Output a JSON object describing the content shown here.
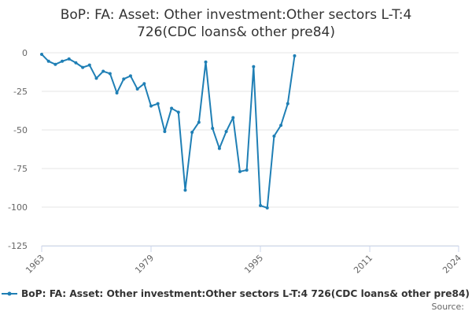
{
  "chart_data": {
    "type": "line",
    "title_lines": [
      "BoP: FA: Asset: Other investment:Other sectors L-T:4",
      "726(CDC loans& other pre84)"
    ],
    "xlabel": "",
    "ylabel": "",
    "xlim": [
      1963,
      2024
    ],
    "ylim": [
      -125,
      0
    ],
    "x_ticks": [
      1963,
      1979,
      1995,
      2011,
      2024
    ],
    "x_tick_labels": [
      "1963",
      "1979",
      "1995",
      "2011",
      "2024"
    ],
    "y_ticks": [
      0,
      -25,
      -50,
      -75,
      -100,
      -125
    ],
    "y_tick_labels": [
      "0",
      "-25",
      "-50",
      "-75",
      "-100",
      "-125"
    ],
    "grid": "horizontal",
    "legend_position": "bottom",
    "source_label": "Source:",
    "series": [
      {
        "name": "BoP: FA: Asset: Other investment:Other sectors L-T:4 726(CDC loans& other pre84)",
        "color": "#1f7fb5",
        "x": [
          1963,
          1964,
          1965,
          1966,
          1967,
          1968,
          1969,
          1970,
          1971,
          1972,
          1973,
          1974,
          1975,
          1976,
          1977,
          1978,
          1979,
          1980,
          1981,
          1982,
          1983,
          1984,
          1985,
          1986,
          1987,
          1988,
          1989,
          1990,
          1991,
          1992,
          1993,
          1994,
          1995,
          1996,
          1997,
          1998,
          1999,
          2000
        ],
        "y": [
          -1,
          -5.5,
          -7.5,
          -5.5,
          -4,
          -6.5,
          -9.5,
          -8,
          -16.5,
          -12,
          -13.5,
          -26,
          -17,
          -15,
          -23.5,
          -20,
          -34.5,
          -33,
          -51,
          -36,
          -38.5,
          -89,
          -51.5,
          -45,
          -6,
          -49,
          -62,
          -51,
          -42,
          -77,
          -76,
          -9,
          -99,
          -100.5,
          -54,
          -47,
          -33,
          -2
        ]
      }
    ]
  }
}
